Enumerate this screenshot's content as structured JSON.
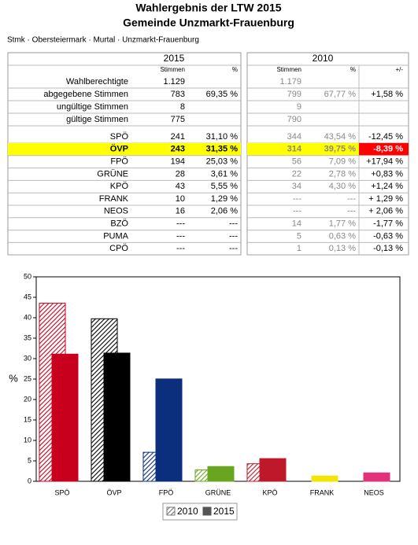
{
  "header": {
    "title": "Wahlergebnis der LTW 2015",
    "subtitle": "Gemeinde Unzmarkt-Frauenburg",
    "breadcrumb": "Stmk · Obersteiermark · Murtal · Unzmarkt-Frauenburg"
  },
  "table": {
    "groups": [
      "2015",
      "2010"
    ],
    "columns": [
      "Stimmen",
      "%",
      "Stimmen",
      "%",
      "+/-"
    ],
    "summary_rows": [
      [
        "Wahlberechtigte",
        "1.129",
        null,
        "1.179",
        null,
        null
      ],
      [
        "abgegebene Stimmen",
        "783",
        "69,35 %",
        "799",
        "67,77 %",
        "+1,58 %"
      ],
      [
        "ungültige Stimmen",
        "8",
        null,
        "9",
        null,
        null
      ],
      [
        "gültige Stimmen",
        "775",
        null,
        "790",
        null,
        null
      ]
    ],
    "party_rows": [
      [
        "SPÖ",
        "241",
        "31,10 %",
        "344",
        "43,54 %",
        "-12,45 %"
      ],
      [
        "ÖVP",
        "243",
        "31,35 %",
        "314",
        "39,75 %",
        "-8,39 %"
      ],
      [
        "FPÖ",
        "194",
        "25,03 %",
        "56",
        "7,09 %",
        "+17,94 %"
      ],
      [
        "GRÜNE",
        "28",
        "3,61 %",
        "22",
        "2,78 %",
        "+0,83 %"
      ],
      [
        "KPÖ",
        "43",
        "5,55 %",
        "34",
        "4,30 %",
        "+1,24 %"
      ],
      [
        "FRANK",
        "10",
        "1,29 %",
        "---",
        "---",
        "+ 1,29 %"
      ],
      [
        "NEOS",
        "16",
        "2,06 %",
        "---",
        "---",
        "+ 2,06 %"
      ],
      [
        "BZÖ",
        "---",
        "---",
        "14",
        "1,77 %",
        "-1,77 %"
      ],
      [
        "PUMA",
        "---",
        "---",
        "5",
        "0,63 %",
        "-0,63 %"
      ],
      [
        "CPÖ",
        "---",
        "---",
        "1",
        "0,13 %",
        "-0,13 %"
      ]
    ]
  },
  "chart_data": {
    "type": "bar",
    "ylabel": "%",
    "categories": [
      "SPÖ",
      "ÖVP",
      "FPÖ",
      "GRÜNE",
      "KPÖ",
      "FRANK",
      "NEOS"
    ],
    "colors": [
      "#c8001e",
      "#000000",
      "#0b2e7d",
      "#6aa520",
      "#c0182b",
      "#f2e600",
      "#e2307a"
    ],
    "series": [
      {
        "name": "2010",
        "color": "#777777",
        "hatched": true,
        "values": [
          43.54,
          39.75,
          7.09,
          2.78,
          4.3,
          null,
          null
        ]
      },
      {
        "name": "2015",
        "color": "#555555",
        "hatched": false,
        "values": [
          31.1,
          31.35,
          25.03,
          3.61,
          5.55,
          1.29,
          2.06
        ]
      }
    ],
    "ylim": [
      0,
      50
    ],
    "yticks": [
      0,
      5,
      10,
      15,
      20,
      25,
      30,
      35,
      40,
      45,
      50
    ],
    "grid": false
  }
}
